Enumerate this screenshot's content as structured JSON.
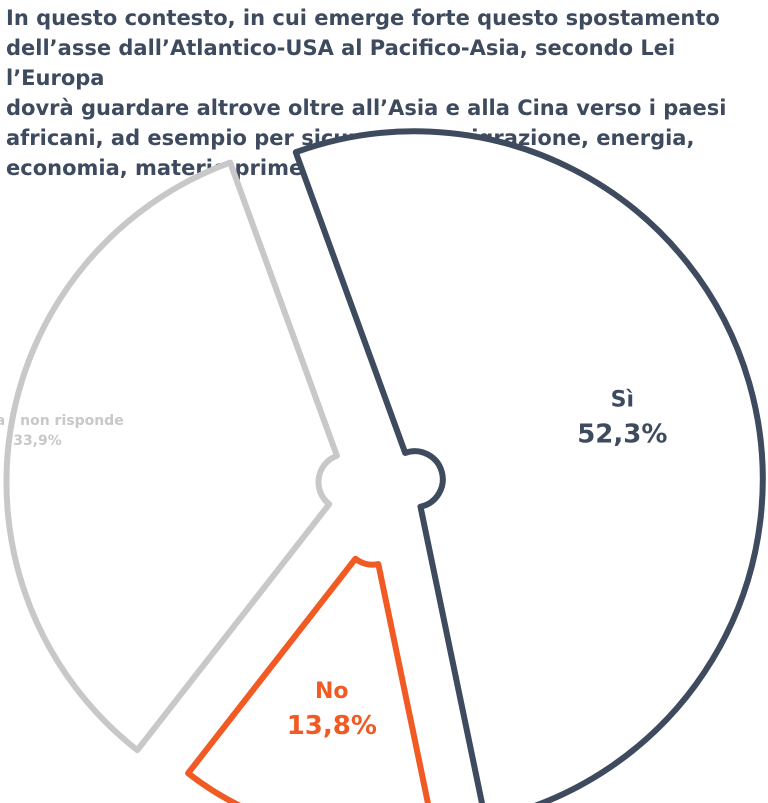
{
  "question": "In questo contesto, in cui emerge forte questo spostamento\ndell’asse dall’Atlantico-USA al Pacifico-Asia, secondo Lei l’Europa\ndovrà guardare altrove oltre all’Asia e alla Cina verso i paesi\nafricani, ad esempio per sicurezza-immigrazione, energia,\neconomia, materie prime…?",
  "chart_data": {
    "type": "pie",
    "title": "",
    "slices": [
      {
        "label": "Sì",
        "value": 52.3,
        "value_text": "52,3%",
        "color": "#3e4a5e",
        "fill": "#ffffff"
      },
      {
        "label": "No",
        "value": 13.8,
        "value_text": "13,8%",
        "color": "#f15a22",
        "fill": "#ffffff"
      },
      {
        "label": "Non sa / non risponde",
        "value": 33.9,
        "value_text": "33,9%",
        "color": "#c8c8c8",
        "fill": "#ffffff"
      }
    ],
    "legend": "none",
    "exploded": true,
    "center_hole": true
  }
}
